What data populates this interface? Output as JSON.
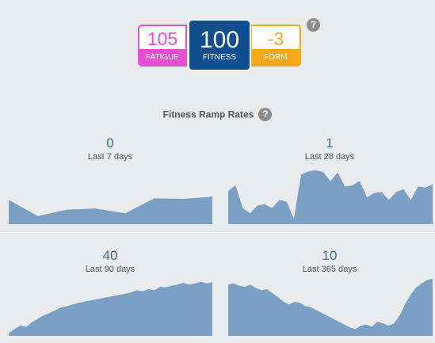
{
  "metrics": {
    "fatigue": {
      "value": "105",
      "label": "FATIGUE",
      "color": "#e84fd0"
    },
    "fitness": {
      "value": "100",
      "label": "FITNESS",
      "color": "#0d4f8f"
    },
    "form": {
      "value": "-3",
      "label": "FORM",
      "color": "#f6a81b"
    },
    "help": "?"
  },
  "ramp": {
    "title": "Fitness Ramp Rates",
    "help": "?",
    "area_color": "#7ba0c4",
    "panels": [
      {
        "value": "0",
        "label": "Last 7 days",
        "series": [
          0.45,
          0.15,
          0.27,
          0.29,
          0.2,
          0.48,
          0.47,
          0.51
        ]
      },
      {
        "value": "1",
        "label": "Last 28 days",
        "series": [
          0.62,
          0.72,
          0.3,
          0.2,
          0.35,
          0.37,
          0.3,
          0.45,
          0.42,
          0.1,
          0.92,
          0.98,
          1.0,
          0.97,
          0.8,
          0.96,
          0.7,
          0.72,
          0.8,
          0.5,
          0.58,
          0.6,
          0.45,
          0.6,
          0.65,
          0.45,
          0.7,
          0.68,
          0.74
        ]
      },
      {
        "value": "40",
        "label": "Last 90 days",
        "series": [
          0.05,
          0.12,
          0.18,
          0.16,
          0.24,
          0.3,
          0.36,
          0.4,
          0.45,
          0.5,
          0.52,
          0.55,
          0.58,
          0.6,
          0.62,
          0.64,
          0.66,
          0.68,
          0.7,
          0.72,
          0.74,
          0.76,
          0.8,
          0.78,
          0.82,
          0.8,
          0.86,
          0.85,
          0.88,
          0.9,
          0.93,
          0.9,
          0.92,
          0.95,
          0.92,
          0.94
        ]
      },
      {
        "value": "10",
        "label": "Last 365 days",
        "series": [
          0.9,
          0.92,
          0.88,
          0.86,
          0.9,
          0.84,
          0.8,
          0.82,
          0.75,
          0.68,
          0.6,
          0.55,
          0.6,
          0.58,
          0.52,
          0.5,
          0.45,
          0.4,
          0.35,
          0.3,
          0.25,
          0.2,
          0.15,
          0.12,
          0.18,
          0.2,
          0.16,
          0.25,
          0.22,
          0.18,
          0.22,
          0.35,
          0.55,
          0.72,
          0.85,
          0.92,
          0.98,
          1.0
        ]
      }
    ]
  }
}
